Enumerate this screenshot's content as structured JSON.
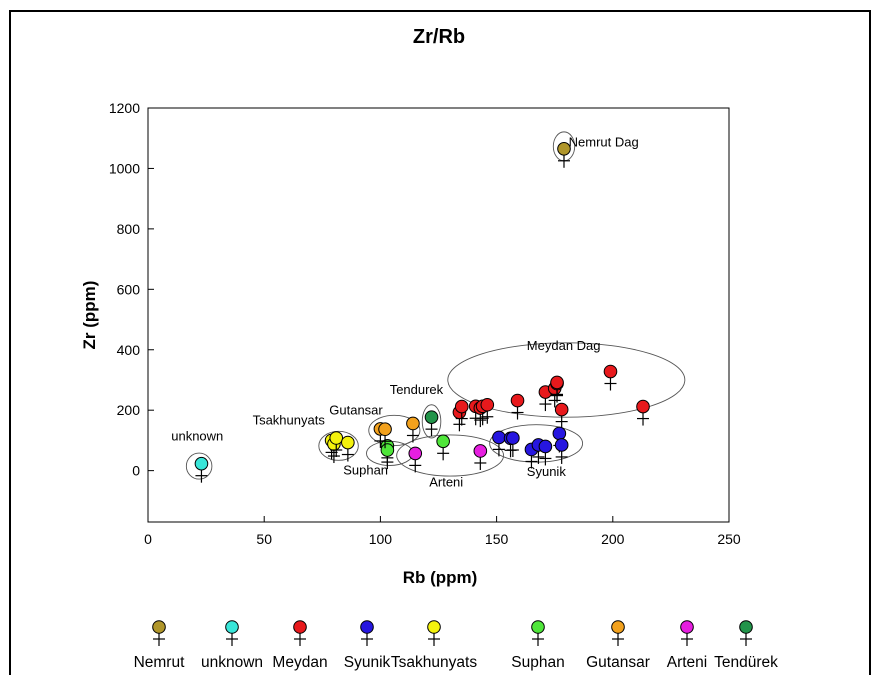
{
  "chart_data": {
    "type": "scatter",
    "title": "Zr/Rb",
    "xlabel": "Rb (ppm)",
    "ylabel": "Zr (ppm)",
    "xlim": [
      0,
      250
    ],
    "ylim": [
      -170,
      1200
    ],
    "xticks": [
      0,
      50,
      100,
      150,
      200,
      250
    ],
    "yticks": [
      0,
      200,
      400,
      600,
      800,
      1000,
      1200
    ],
    "grid": false,
    "legend_position": "bottom",
    "series": [
      {
        "name": "Nemrut",
        "color": "#b0962a",
        "points": [
          [
            179,
            1065
          ]
        ]
      },
      {
        "name": "unknown",
        "color": "#39e6d9",
        "points": [
          [
            23,
            23
          ]
        ]
      },
      {
        "name": "Meydan",
        "color": "#e8191c",
        "points": [
          [
            134,
            193
          ],
          [
            135,
            212
          ],
          [
            141,
            213
          ],
          [
            143,
            207
          ],
          [
            144,
            213
          ],
          [
            146,
            218
          ],
          [
            159,
            232
          ],
          [
            171,
            260
          ],
          [
            175,
            272
          ],
          [
            176,
            288
          ],
          [
            176,
            292
          ],
          [
            178,
            202
          ],
          [
            199,
            328
          ],
          [
            213,
            212
          ]
        ]
      },
      {
        "name": "Syunik",
        "color": "#2616e0",
        "points": [
          [
            151,
            110
          ],
          [
            156,
            107
          ],
          [
            157,
            108
          ],
          [
            165,
            70
          ],
          [
            168,
            85
          ],
          [
            171,
            80
          ],
          [
            177,
            123
          ],
          [
            178,
            85
          ]
        ]
      },
      {
        "name": "Tsakhunyats",
        "color": "#f4f20d",
        "points": [
          [
            79,
            100
          ],
          [
            80,
            88
          ],
          [
            81,
            108
          ],
          [
            86,
            93
          ]
        ]
      },
      {
        "name": "Suphan",
        "color": "#4fe63a",
        "points": [
          [
            103,
            82
          ],
          [
            103,
            68
          ],
          [
            127,
            97
          ]
        ]
      },
      {
        "name": "Gutansar",
        "color": "#f2a11d",
        "points": [
          [
            100,
            138
          ],
          [
            102,
            137
          ],
          [
            114,
            156
          ]
        ]
      },
      {
        "name": "Arteni",
        "color": "#e61fe0",
        "points": [
          [
            115,
            57
          ],
          [
            143,
            65
          ]
        ]
      },
      {
        "name": "Tendürek",
        "color": "#22944a",
        "points": [
          [
            122,
            177
          ]
        ]
      }
    ],
    "annotations": [
      {
        "text": "Nemrut Dag",
        "x": 181,
        "y": 1073
      },
      {
        "text": "Meydan Dag",
        "x": 163,
        "y": 400
      },
      {
        "text": "Tendurek",
        "x": 104,
        "y": 253
      },
      {
        "text": "Gutansar",
        "x": 78,
        "y": 185
      },
      {
        "text": "Tsakhunyats",
        "x": 45,
        "y": 152
      },
      {
        "text": "unknown",
        "x": 10,
        "y": 100
      },
      {
        "text": "Suphan",
        "x": 84,
        "y": -12
      },
      {
        "text": "Arteni",
        "x": 121,
        "y": -53
      },
      {
        "text": "Syunik",
        "x": 163,
        "y": -17
      }
    ],
    "ellipses": [
      {
        "cx": 180,
        "cy": 300,
        "rx": 51,
        "ry": 123
      },
      {
        "cx": 167,
        "cy": 90,
        "rx": 20,
        "ry": 62
      },
      {
        "cx": 22,
        "cy": 15,
        "rx": 5.5,
        "ry": 43
      },
      {
        "cx": 82,
        "cy": 82,
        "rx": 8.5,
        "ry": 48
      },
      {
        "cx": 106,
        "cy": 133,
        "rx": 11,
        "ry": 50
      },
      {
        "cx": 122,
        "cy": 163,
        "rx": 4,
        "ry": 55
      },
      {
        "cx": 104,
        "cy": 57,
        "rx": 10,
        "ry": 40
      },
      {
        "cx": 130,
        "cy": 50,
        "rx": 23,
        "ry": 68
      },
      {
        "cx": 179,
        "cy": 1073,
        "rx": 4.6,
        "ry": 48
      }
    ]
  },
  "legend": [
    {
      "label": "Nemrut",
      "color": "#b0962a"
    },
    {
      "label": "unknown",
      "color": "#39e6d9"
    },
    {
      "label": "Meydan",
      "color": "#e8191c"
    },
    {
      "label": "Syunik",
      "color": "#2616e0"
    },
    {
      "label": "Tsakhunyats",
      "color": "#f4f20d"
    },
    {
      "label": "Suphan",
      "color": "#4fe63a"
    },
    {
      "label": "Gutansar",
      "color": "#f2a11d"
    },
    {
      "label": "Arteni",
      "color": "#e61fe0"
    },
    {
      "label": "Tendürek",
      "color": "#22944a"
    }
  ]
}
